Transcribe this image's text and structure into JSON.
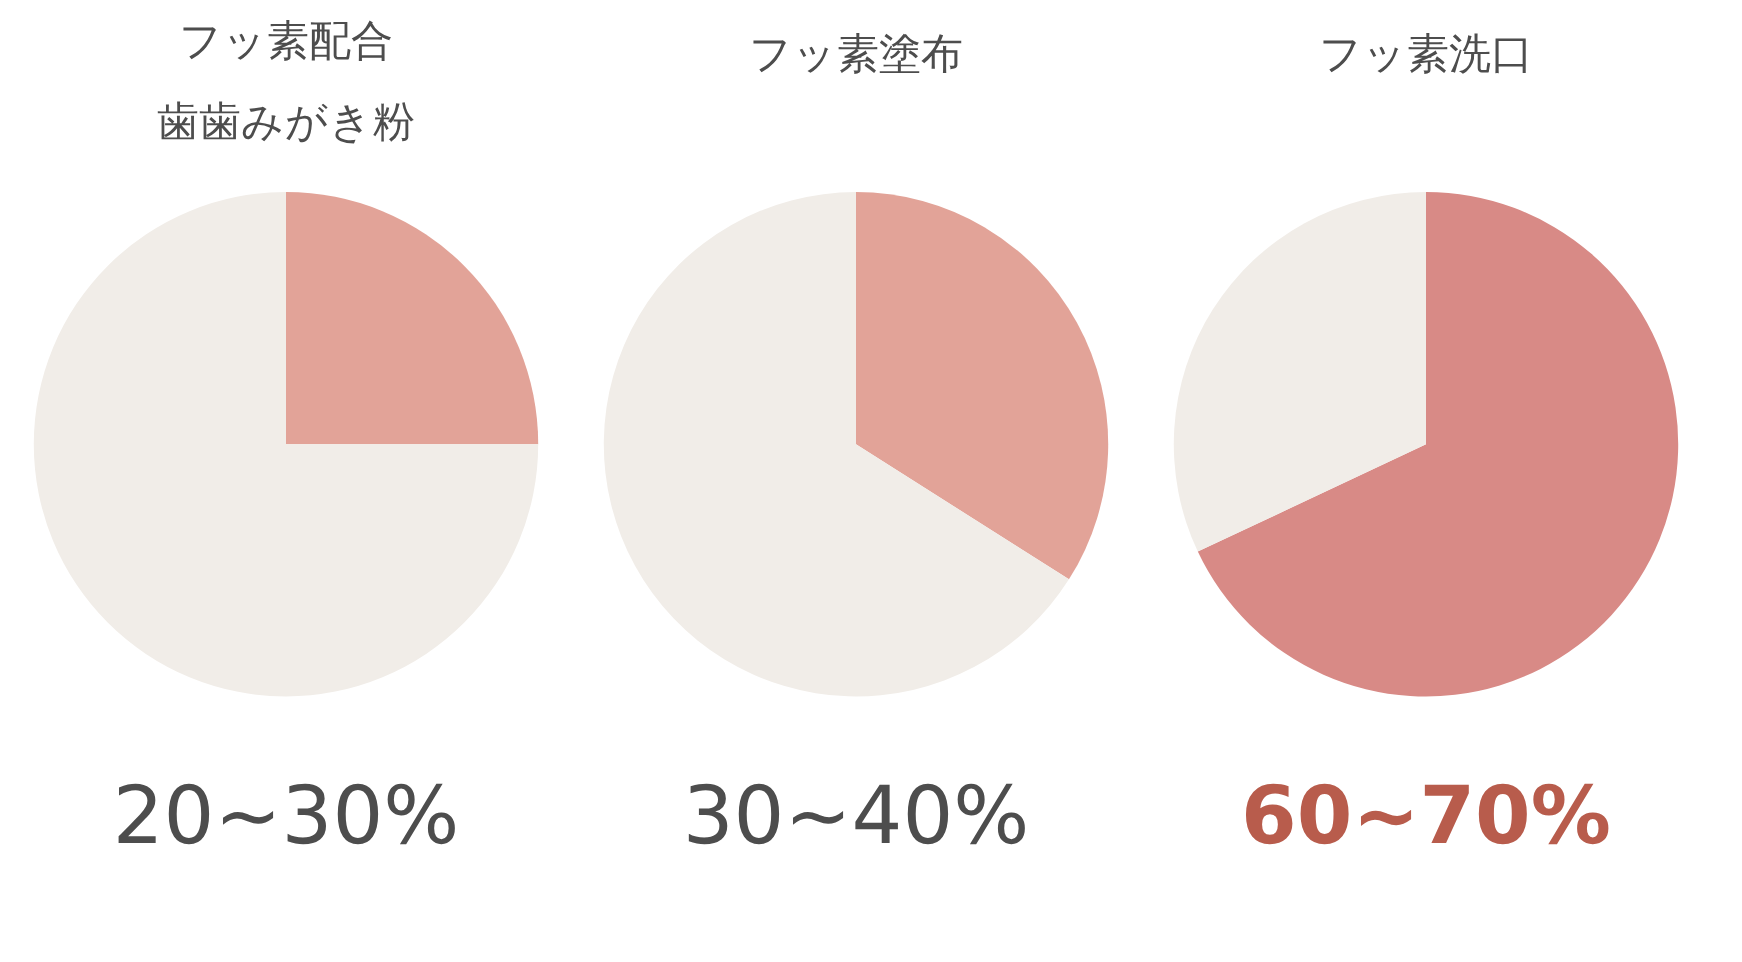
{
  "chart_data": [
    {
      "type": "pie",
      "title": "フッ素配合歯歯みがき粉",
      "categories": [
        null,
        null
      ],
      "values": [
        25,
        75
      ],
      "colors": [
        "#e2a398",
        "#f1ede8"
      ],
      "annotations": [
        "20~30%"
      ]
    },
    {
      "type": "pie",
      "title": "フッ素塗布",
      "categories": [
        null,
        null
      ],
      "values": [
        34,
        66
      ],
      "colors": [
        "#e2a398",
        "#f1ede8"
      ],
      "annotations": [
        "30~40%"
      ]
    },
    {
      "type": "pie",
      "title": "フッ素洗口",
      "categories": [
        null,
        null
      ],
      "values": [
        68,
        32
      ],
      "colors": [
        "#d88a86",
        "#f1ede8"
      ],
      "annotations": [
        "60~70%"
      ]
    }
  ]
}
